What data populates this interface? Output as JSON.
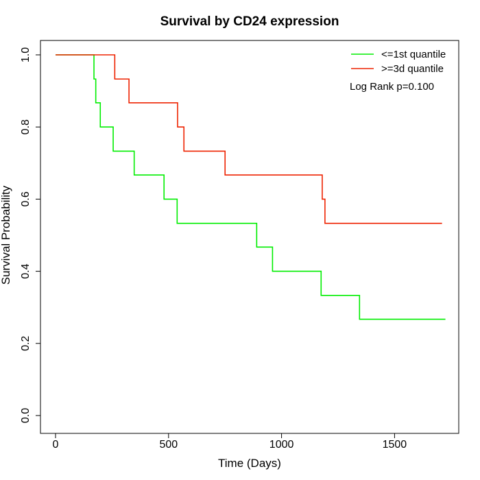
{
  "chart_data": {
    "type": "line",
    "step": true,
    "title": "Survival by CD24 expression",
    "xlabel": "Time (Days)",
    "ylabel": "Survival Probability",
    "xlim": [
      0,
      1800
    ],
    "ylim": [
      0,
      1
    ],
    "xticks": [
      "0",
      "500",
      "1000",
      "1500"
    ],
    "yticks": [
      "0.0",
      "0.2",
      "0.4",
      "0.6",
      "0.8",
      "1.0"
    ],
    "grid": false,
    "legend_position": "top-right",
    "annotation": "Log Rank p=0.100",
    "series": [
      {
        "name": "<=1st quantile",
        "color": "#00ee00",
        "x": [
          0,
          170,
          178,
          198,
          255,
          348,
          480,
          538,
          890,
          960,
          1175,
          1345,
          1725
        ],
        "y": [
          1.0,
          0.933,
          0.867,
          0.8,
          0.733,
          0.667,
          0.6,
          0.533,
          0.467,
          0.4,
          0.333,
          0.267,
          0.267
        ]
      },
      {
        "name": ">=3d quantile",
        "color": "#ee2200",
        "x": [
          0,
          262,
          325,
          540,
          568,
          750,
          1180,
          1192,
          1710
        ],
        "y": [
          1.0,
          0.933,
          0.867,
          0.8,
          0.733,
          0.667,
          0.6,
          0.533,
          0.533
        ]
      }
    ]
  }
}
